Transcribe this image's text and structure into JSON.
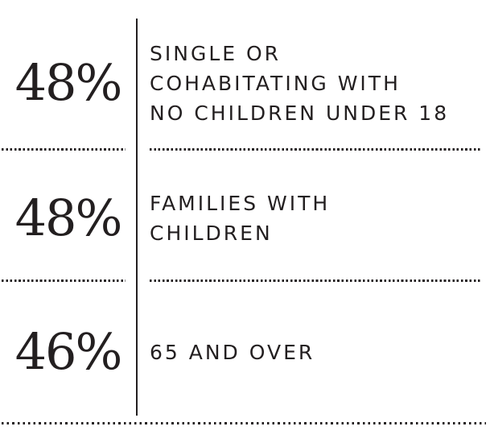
{
  "colors": {
    "ink": "#231f20",
    "background": "#ffffff"
  },
  "chart_data": {
    "type": "table",
    "categories": [
      "SINGLE OR COHABITATING WITH NO CHILDREN UNDER 18",
      "FAMILIES WITH CHILDREN",
      "65 AND OVER"
    ],
    "values": [
      48,
      48,
      46
    ],
    "rows": [
      {
        "value": "48%",
        "label": "SINGLE OR COHABITATING WITH NO CHILDREN UNDER 18",
        "label_lines": [
          "SINGLE OR",
          "COHABITATING WITH",
          "NO CHILDREN UNDER 18"
        ]
      },
      {
        "value": "48%",
        "label": "FAMILIES WITH CHILDREN",
        "label_lines": [
          "FAMILIES WITH",
          "CHILDREN"
        ]
      },
      {
        "value": "46%",
        "label": "65 AND OVER",
        "label_lines": [
          "65 AND OVER"
        ]
      }
    ],
    "layout": {
      "legend": "none",
      "grid": "off",
      "divider": "vertical line between values and labels, dotted rules between rows"
    }
  }
}
